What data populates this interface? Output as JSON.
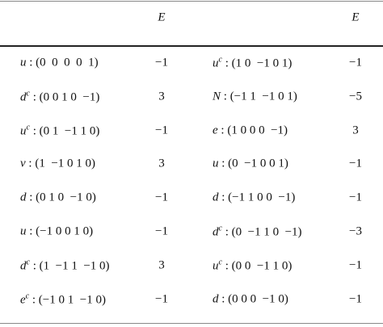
{
  "table": {
    "header": [
      "E",
      "E"
    ],
    "rows": [
      {
        "left": {
          "particle": "u",
          "vector": "(0  0  0  0  1)"
        },
        "left_E": "−1",
        "right": {
          "particle": "u",
          "sup": "c",
          "vector": "(1 0  −1 0 1)"
        },
        "right_E": "−1"
      },
      {
        "left": {
          "particle": "d",
          "sup": "c",
          "vector": "(0 0 1 0  −1)"
        },
        "left_E": "3",
        "right": {
          "particle": "N",
          "vector": "(−1 1  −1 0 1)"
        },
        "right_E": "−5"
      },
      {
        "left": {
          "particle": "u",
          "sup": "c",
          "vector": "(0 1  −1 1 0)"
        },
        "left_E": "−1",
        "right": {
          "particle": "e",
          "vector": "(1 0 0 0  −1)"
        },
        "right_E": "3"
      },
      {
        "left": {
          "particle": "ν",
          "vector": "(1  −1 0 1 0)"
        },
        "left_E": "3",
        "right": {
          "particle": "u",
          "vector": "(0  −1 0 0 1)"
        },
        "right_E": "−1"
      },
      {
        "left": {
          "particle": "d",
          "vector": "(0 1 0  −1 0)"
        },
        "left_E": "−1",
        "right": {
          "particle": "d",
          "vector": "(−1 1 0 0  −1)"
        },
        "right_E": "−1"
      },
      {
        "left": {
          "particle": "u",
          "vector": "(−1 0 0 1 0)"
        },
        "left_E": "−1",
        "right": {
          "particle": "d",
          "sup": "c",
          "vector": "(0  −1 1 0  −1)"
        },
        "right_E": "−3"
      },
      {
        "left": {
          "particle": "d",
          "sup": "c",
          "vector": "(1  −1 1  −1 0)"
        },
        "left_E": "3",
        "right": {
          "particle": "u",
          "sup": "c",
          "vector": "(0 0  −1 1 0)"
        },
        "right_E": "−1"
      },
      {
        "left": {
          "particle": "e",
          "sup": "c",
          "vector": "(−1 0 1  −1 0)"
        },
        "left_E": "−1",
        "right": {
          "particle": "d",
          "vector": "(0 0 0  −1 0)"
        },
        "right_E": "−1"
      }
    ]
  }
}
